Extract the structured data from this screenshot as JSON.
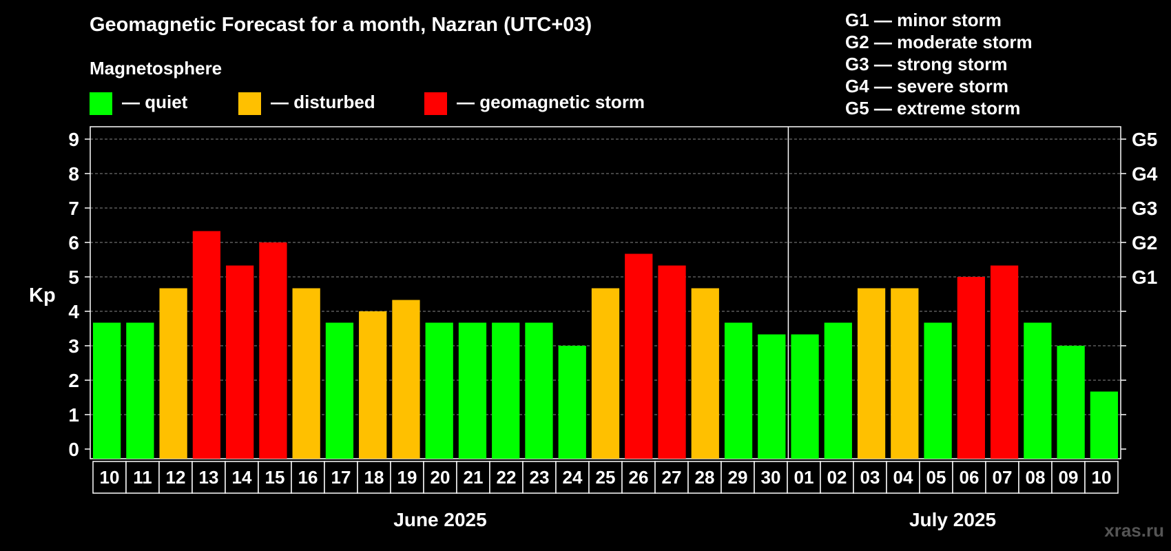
{
  "header": {
    "title": "Geomagnetic Forecast for a month, Nazran (UTC+03)",
    "legend_heading": "Magnetosphere"
  },
  "legend": [
    {
      "label": "— quiet",
      "color": "#00ff00"
    },
    {
      "label": "— disturbed",
      "color": "#ffc000"
    },
    {
      "label": "— geomagnetic storm",
      "color": "#ff0000"
    }
  ],
  "storm_scale": [
    "G1 — minor storm",
    "G2 — moderate storm",
    "G3 — strong storm",
    "G4 — severe storm",
    "G5 — extreme storm"
  ],
  "watermark": "xras.ru",
  "colors": {
    "quiet": "#00ff00",
    "disturbed": "#ffc000",
    "storm": "#ff0000",
    "background": "#000000"
  },
  "chart_data": {
    "type": "bar",
    "title": "Geomagnetic Forecast for a month, Nazran (UTC+03)",
    "ylabel": "Kp",
    "ylim": [
      0,
      9
    ],
    "yticks": [
      "0",
      "1",
      "2",
      "3",
      "4",
      "5",
      "6",
      "7",
      "8",
      "9"
    ],
    "right_axis_labels": [
      {
        "value": 5,
        "label": "G1"
      },
      {
        "value": 6,
        "label": "G2"
      },
      {
        "value": 7,
        "label": "G3"
      },
      {
        "value": 8,
        "label": "G4"
      },
      {
        "value": 9,
        "label": "G5"
      }
    ],
    "categories": [
      "10",
      "11",
      "12",
      "13",
      "14",
      "15",
      "16",
      "17",
      "18",
      "19",
      "20",
      "21",
      "22",
      "23",
      "24",
      "25",
      "26",
      "27",
      "28",
      "29",
      "30",
      "01",
      "02",
      "03",
      "04",
      "05",
      "06",
      "07",
      "08",
      "09",
      "10"
    ],
    "values": [
      3.67,
      3.67,
      4.67,
      6.33,
      5.33,
      6.0,
      4.67,
      3.67,
      4.0,
      4.33,
      3.67,
      3.67,
      3.67,
      3.67,
      3.0,
      4.67,
      5.67,
      5.33,
      4.67,
      3.67,
      3.33,
      3.33,
      3.67,
      4.67,
      4.67,
      3.67,
      5.0,
      5.33,
      3.67,
      3.0,
      1.67
    ],
    "levels": [
      "quiet",
      "quiet",
      "disturbed",
      "storm",
      "storm",
      "storm",
      "disturbed",
      "quiet",
      "disturbed",
      "disturbed",
      "quiet",
      "quiet",
      "quiet",
      "quiet",
      "quiet",
      "disturbed",
      "storm",
      "storm",
      "disturbed",
      "quiet",
      "quiet",
      "quiet",
      "quiet",
      "disturbed",
      "disturbed",
      "quiet",
      "storm",
      "storm",
      "quiet",
      "quiet",
      "quiet"
    ],
    "months": [
      {
        "label": "June 2025",
        "start": 0,
        "count": 21
      },
      {
        "label": "July 2025",
        "start": 21,
        "count": 10
      }
    ],
    "grid": true
  }
}
